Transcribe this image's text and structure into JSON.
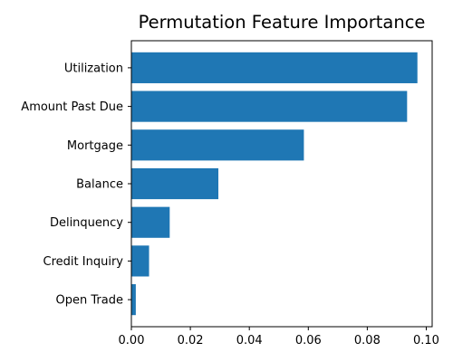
{
  "chart_data": {
    "type": "bar",
    "orientation": "horizontal",
    "title": "Permutation Feature Importance",
    "xlabel": "",
    "ylabel": "",
    "categories": [
      "Open Trade",
      "Credit Inquiry",
      "Delinquency",
      "Balance",
      "Mortgage",
      "Amount Past Due",
      "Utilization"
    ],
    "values": [
      0.0015,
      0.006,
      0.013,
      0.0295,
      0.0585,
      0.0935,
      0.097
    ],
    "xlim": [
      0,
      0.102
    ],
    "xticks": [
      0.0,
      0.02,
      0.04,
      0.06,
      0.08,
      0.1
    ],
    "xtick_labels": [
      "0.00",
      "0.02",
      "0.04",
      "0.06",
      "0.08",
      "0.10"
    ],
    "grid": false,
    "legend": "none",
    "bar_color": "#1f77b4"
  }
}
